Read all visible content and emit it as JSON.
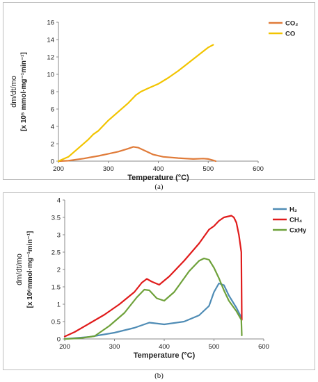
{
  "captions": [
    "(a)",
    "(b)"
  ],
  "chart_data": [
    {
      "type": "line",
      "title": "",
      "xlabel": "Temperature (°C)",
      "ylabel_line1": "dm/dt/mo",
      "ylabel_line2": "[x 10⁵ mmol·mg⁻¹min⁻¹]",
      "xlim": [
        200,
        600
      ],
      "ylim": [
        0,
        16
      ],
      "x_ticks": [
        200,
        300,
        400,
        500,
        600
      ],
      "y_ticks": [
        0,
        2,
        4,
        6,
        8,
        10,
        12,
        14,
        16
      ],
      "grid": false,
      "legend_position": "top-right",
      "series": [
        {
          "name": "CO₂",
          "color": "#E07B39",
          "x": [
            200,
            220,
            250,
            280,
            300,
            320,
            340,
            350,
            360,
            375,
            390,
            410,
            440,
            470,
            490,
            500,
            510,
            515
          ],
          "y": [
            0.0,
            0.05,
            0.3,
            0.6,
            0.85,
            1.1,
            1.45,
            1.65,
            1.55,
            1.15,
            0.75,
            0.5,
            0.35,
            0.25,
            0.3,
            0.25,
            0.1,
            0.0
          ]
        },
        {
          "name": "CO",
          "color": "#F2C400",
          "x": [
            200,
            220,
            240,
            260,
            270,
            280,
            300,
            320,
            340,
            355,
            365,
            380,
            400,
            420,
            440,
            460,
            480,
            500,
            510
          ],
          "y": [
            0.0,
            0.5,
            1.5,
            2.5,
            3.1,
            3.5,
            4.7,
            5.7,
            6.7,
            7.6,
            8.0,
            8.4,
            8.9,
            9.6,
            10.4,
            11.3,
            12.2,
            13.1,
            13.4
          ]
        }
      ]
    },
    {
      "type": "line",
      "title": "",
      "xlabel": "Temperature (°C)",
      "ylabel_line1": "dm/dt/mo",
      "ylabel_line2": "[x 10⁶mmol·mg⁻¹min⁻¹]",
      "xlim": [
        200,
        600
      ],
      "ylim": [
        0,
        4
      ],
      "x_ticks": [
        200,
        300,
        400,
        500,
        600
      ],
      "y_ticks": [
        0,
        0.5,
        1,
        1.5,
        2,
        2.5,
        3,
        3.5,
        4
      ],
      "grid": false,
      "legend_position": "top-right",
      "series": [
        {
          "name": "H₂",
          "color": "#4F8CB5",
          "x": [
            200,
            250,
            300,
            340,
            370,
            400,
            440,
            470,
            490,
            500,
            510,
            520,
            530,
            545,
            555
          ],
          "y": [
            0.0,
            0.06,
            0.18,
            0.32,
            0.47,
            0.42,
            0.5,
            0.68,
            0.95,
            1.35,
            1.6,
            1.55,
            1.25,
            0.9,
            0.62
          ]
        },
        {
          "name": "CH₄",
          "color": "#E01B1B",
          "x": [
            200,
            220,
            250,
            280,
            310,
            340,
            355,
            365,
            375,
            390,
            410,
            440,
            470,
            490,
            500,
            510,
            520,
            535,
            540,
            545,
            550,
            555,
            556
          ],
          "y": [
            0.07,
            0.2,
            0.45,
            0.7,
            1.0,
            1.35,
            1.62,
            1.73,
            1.65,
            1.56,
            1.8,
            2.25,
            2.75,
            3.15,
            3.25,
            3.4,
            3.5,
            3.55,
            3.5,
            3.35,
            3.0,
            2.5,
            0.55
          ]
        },
        {
          "name": "CxHy",
          "color": "#6EA13A",
          "x": [
            200,
            230,
            260,
            290,
            320,
            345,
            360,
            370,
            385,
            400,
            420,
            450,
            470,
            480,
            490,
            500,
            510,
            520,
            530,
            545,
            555,
            556
          ],
          "y": [
            0.0,
            0.02,
            0.08,
            0.38,
            0.75,
            1.2,
            1.42,
            1.4,
            1.17,
            1.1,
            1.35,
            1.95,
            2.25,
            2.32,
            2.28,
            2.05,
            1.75,
            1.4,
            1.1,
            0.8,
            0.55,
            0.1
          ]
        }
      ]
    }
  ]
}
